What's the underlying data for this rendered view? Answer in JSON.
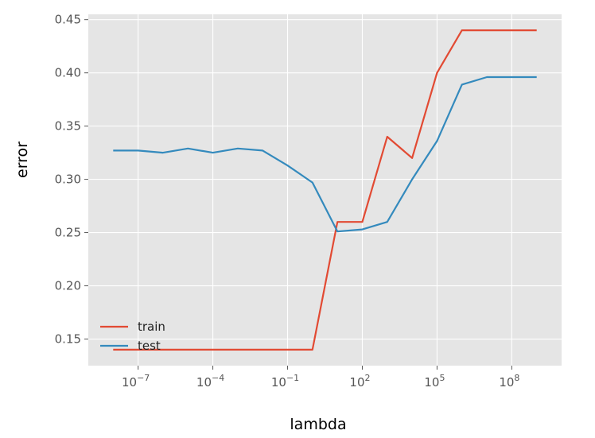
{
  "chart_data": {
    "type": "line",
    "xlabel": "lambda",
    "ylabel": "error",
    "xscale": "log10",
    "xlim": [
      1e-09,
      10000000000.0
    ],
    "ylim": [
      0.125,
      0.455
    ],
    "grid": true,
    "legend_position": "lower-left",
    "x_ticks": [
      {
        "value": 1e-07,
        "mantissa": "10",
        "exponent": "−7"
      },
      {
        "value": 0.0001,
        "mantissa": "10",
        "exponent": "−4"
      },
      {
        "value": 0.1,
        "mantissa": "10",
        "exponent": "−1"
      },
      {
        "value": 100.0,
        "mantissa": "10",
        "exponent": "2"
      },
      {
        "value": 100000.0,
        "mantissa": "10",
        "exponent": "5"
      },
      {
        "value": 100000000.0,
        "mantissa": "10",
        "exponent": "8"
      }
    ],
    "y_ticks": [
      {
        "value": 0.15,
        "label": "0.15"
      },
      {
        "value": 0.2,
        "label": "0.20"
      },
      {
        "value": 0.25,
        "label": "0.25"
      },
      {
        "value": 0.3,
        "label": "0.30"
      },
      {
        "value": 0.35,
        "label": "0.35"
      },
      {
        "value": 0.4,
        "label": "0.40"
      },
      {
        "value": 0.45,
        "label": "0.45"
      }
    ],
    "x": [
      1e-08,
      1e-07,
      1e-06,
      1e-05,
      0.0001,
      0.001,
      0.01,
      0.1,
      1,
      10,
      100,
      1000,
      10000,
      100000,
      1000000,
      10000000,
      100000000,
      1000000000
    ],
    "series": [
      {
        "name": "train",
        "color": "#E24A33",
        "values": [
          0.14,
          0.14,
          0.14,
          0.14,
          0.14,
          0.14,
          0.14,
          0.14,
          0.14,
          0.26,
          0.26,
          0.34,
          0.32,
          0.4,
          0.44,
          0.44,
          0.44,
          0.44
        ]
      },
      {
        "name": "test",
        "color": "#348ABD",
        "values": [
          0.327,
          0.327,
          0.325,
          0.329,
          0.325,
          0.329,
          0.327,
          0.313,
          0.297,
          0.251,
          0.253,
          0.26,
          0.3,
          0.336,
          0.389,
          0.396,
          0.396,
          0.396
        ]
      }
    ]
  }
}
